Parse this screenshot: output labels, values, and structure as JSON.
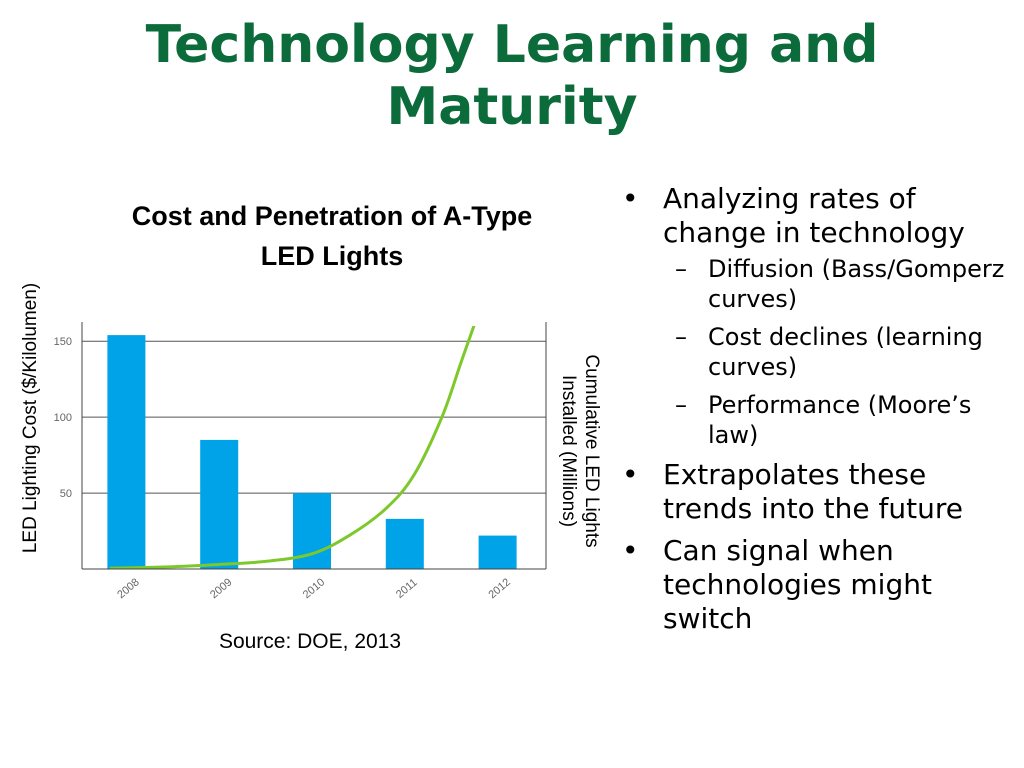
{
  "slide": {
    "title_line1": "Technology Learning and",
    "title_line2": "Maturity",
    "source": "Source: DOE, 2013"
  },
  "bullets": [
    {
      "text": "Analyzing rates of change in technology",
      "children": [
        "Diffusion (Bass/Gomperz curves)",
        "Cost declines (learning curves)",
        "Performance (Moore’s law)"
      ]
    },
    {
      "text": "Extrapolates these trends into the future",
      "children": []
    },
    {
      "text": "Can signal when technologies might switch",
      "children": []
    }
  ],
  "colors": {
    "title": "#0b6b3a",
    "bar": "#00a3e8",
    "line": "#7dc82b",
    "grid": "#555555"
  },
  "chart_data": {
    "type": "bar",
    "title_line1": "Cost and Penetration of A-Type",
    "title_line2": "LED Lights",
    "categories": [
      "2008",
      "2009",
      "2010",
      "2011",
      "2012"
    ],
    "ylabel": "LED Lighting Cost ($/Kilolumen)",
    "y2label_line1": "Cumulative LED Lights",
    "y2label_line2": "Installed (Millions)",
    "ylim": [
      0,
      160
    ],
    "yticks": [
      50,
      100,
      150
    ],
    "grid": true,
    "series": [
      {
        "type": "bar",
        "values": [
          154,
          85,
          50,
          33,
          22
        ]
      },
      {
        "type": "line",
        "axis": "y2",
        "x": [
          2007.82,
          2008.5,
          2009,
          2009.5,
          2010,
          2010.4,
          2010.8,
          2011.1,
          2011.4,
          2011.6,
          2011.75
        ],
        "values": [
          0.5,
          1.5,
          3,
          5,
          10,
          22,
          40,
          62,
          100,
          135,
          161
        ]
      }
    ]
  }
}
